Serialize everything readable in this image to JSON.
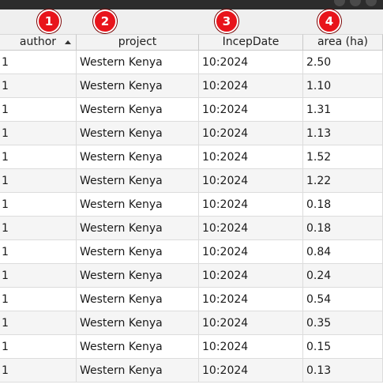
{
  "markers": [
    "1",
    "2",
    "3",
    "4"
  ],
  "columns": [
    {
      "label": "author",
      "sorted": "ascending"
    },
    {
      "label": "project"
    },
    {
      "label": "IncepDate"
    },
    {
      "label": "area (ha)"
    }
  ],
  "rows": [
    [
      "1",
      "Western Kenya",
      "10:2024",
      "2.50"
    ],
    [
      "1",
      "Western Kenya",
      "10:2024",
      "1.10"
    ],
    [
      "1",
      "Western Kenya",
      "10:2024",
      "1.31"
    ],
    [
      "1",
      "Western Kenya",
      "10:2024",
      "1.13"
    ],
    [
      "1",
      "Western Kenya",
      "10:2024",
      "1.52"
    ],
    [
      "1",
      "Western Kenya",
      "10:2024",
      "1.22"
    ],
    [
      "1",
      "Western Kenya",
      "10:2024",
      "0.18"
    ],
    [
      "1",
      "Western Kenya",
      "10:2024",
      "0.18"
    ],
    [
      "1",
      "Western Kenya",
      "10:2024",
      "0.84"
    ],
    [
      "1",
      "Western Kenya",
      "10:2024",
      "0.24"
    ],
    [
      "1",
      "Western Kenya",
      "10:2024",
      "0.54"
    ],
    [
      "1",
      "Western Kenya",
      "10:2024",
      "0.35"
    ],
    [
      "1",
      "Western Kenya",
      "10:2024",
      "0.15"
    ],
    [
      "1",
      "Western Kenya",
      "10:2024",
      "0.13"
    ]
  ]
}
